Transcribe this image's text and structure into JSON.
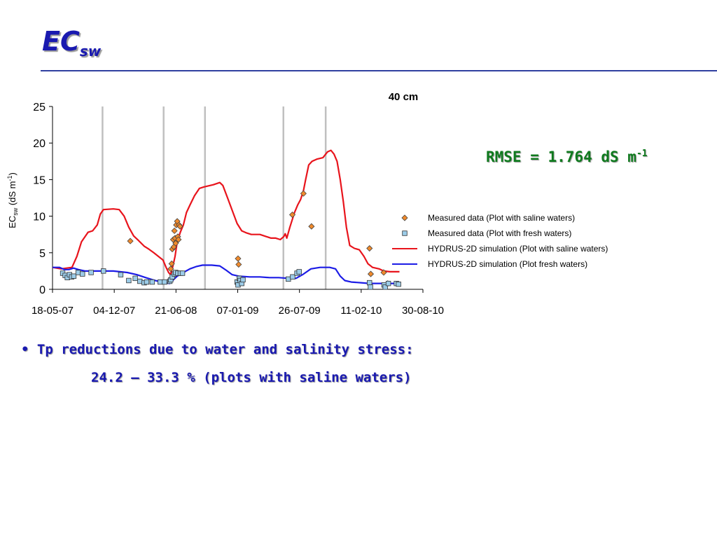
{
  "slide": {
    "title_main": "EC",
    "title_sub": "sw",
    "rmse_text": "RMSE = 1.764 dS m",
    "rmse_exp": "-1",
    "bullet_marker": "•",
    "bullet_line1": "Tp reductions due to water and salinity stress:",
    "bullet_line2": "24.2 – 33.3 % (plots with saline waters)"
  },
  "chart_data": {
    "type": "line",
    "title": "40 cm",
    "ylabel": "EC",
    "ylabel_sub": "sw",
    "ylabel_units": " (dS m",
    "ylabel_exp": "-1",
    "ylabel_close": ")",
    "ylim": [
      0,
      25
    ],
    "yticks": [
      "0",
      "5",
      "10",
      "15",
      "20",
      "25"
    ],
    "xlim": [
      "2007-05-18",
      "2010-08-30"
    ],
    "xticks": [
      "18-05-07",
      "04-12-07",
      "21-06-08",
      "07-01-09",
      "26-07-09",
      "11-02-10",
      "30-08-10"
    ],
    "vertical_lines": [
      "2007-10-27",
      "2008-05-12",
      "2008-09-23",
      "2009-06-04",
      "2009-10-19"
    ],
    "grid": false,
    "legend_position": "right",
    "colors": {
      "saline": "#e8141c",
      "fresh": "#1c1ce6",
      "measured_saline": "#f08a2c",
      "measured_fresh": "#9ccce8",
      "vline": "#c0c0c0"
    },
    "series": [
      {
        "name": "Measured data (Plot with saline waters)",
        "kind": "points",
        "marker": "diamond",
        "points": [
          [
            "2008-01-25",
            6.6
          ],
          [
            "2008-06-04",
            2.8
          ],
          [
            "2008-06-07",
            3.5
          ],
          [
            "2008-06-09",
            5.5
          ],
          [
            "2008-06-12",
            6.8
          ],
          [
            "2008-06-14",
            5.8
          ],
          [
            "2008-06-16",
            8.0
          ],
          [
            "2008-06-18",
            7.0
          ],
          [
            "2008-06-20",
            6.3
          ],
          [
            "2008-06-22",
            8.8
          ],
          [
            "2008-06-25",
            9.3
          ],
          [
            "2008-06-27",
            7.2
          ],
          [
            "2008-06-29",
            6.8
          ],
          [
            "2008-07-01",
            8.8
          ],
          [
            "2008-07-04",
            8.6
          ],
          [
            "2009-01-08",
            4.2
          ],
          [
            "2009-01-10",
            3.4
          ],
          [
            "2009-07-03",
            10.2
          ],
          [
            "2009-08-08",
            13.1
          ],
          [
            "2009-09-03",
            8.6
          ],
          [
            "2010-03-10",
            5.6
          ],
          [
            "2010-03-14",
            2.1
          ],
          [
            "2010-04-25",
            2.3
          ],
          [
            "2010-05-08",
            0.8
          ]
        ]
      },
      {
        "name": "Measured data (Plot with fresh waters)",
        "kind": "points",
        "marker": "square",
        "points": [
          [
            "2007-06-20",
            2.2
          ],
          [
            "2007-06-28",
            1.9
          ],
          [
            "2007-07-05",
            1.6
          ],
          [
            "2007-07-12",
            2.0
          ],
          [
            "2007-07-19",
            1.7
          ],
          [
            "2007-07-26",
            1.8
          ],
          [
            "2007-08-09",
            2.3
          ],
          [
            "2007-08-23",
            2.1
          ],
          [
            "2007-09-20",
            2.3
          ],
          [
            "2007-10-30",
            2.5
          ],
          [
            "2007-12-25",
            2.0
          ],
          [
            "2008-01-20",
            1.2
          ],
          [
            "2008-02-10",
            1.5
          ],
          [
            "2008-02-25",
            1.1
          ],
          [
            "2008-03-10",
            0.9
          ],
          [
            "2008-03-18",
            1.0
          ],
          [
            "2008-04-05",
            1.0
          ],
          [
            "2008-05-01",
            1.0
          ],
          [
            "2008-05-15",
            1.0
          ],
          [
            "2008-06-01",
            1.1
          ],
          [
            "2008-06-04",
            1.3
          ],
          [
            "2008-06-09",
            1.7
          ],
          [
            "2008-06-16",
            2.1
          ],
          [
            "2008-06-20",
            2.3
          ],
          [
            "2008-06-27",
            2.2
          ],
          [
            "2008-07-05",
            2.2
          ],
          [
            "2008-07-12",
            2.2
          ],
          [
            "2009-01-05",
            1.0
          ],
          [
            "2009-01-08",
            0.6
          ],
          [
            "2009-01-12",
            1.5
          ],
          [
            "2009-01-15",
            1.2
          ],
          [
            "2009-01-20",
            0.8
          ],
          [
            "2009-01-24",
            1.3
          ],
          [
            "2009-06-20",
            1.4
          ],
          [
            "2009-07-04",
            1.7
          ],
          [
            "2009-07-18",
            2.2
          ],
          [
            "2009-07-25",
            2.4
          ],
          [
            "2010-03-10",
            0.9
          ],
          [
            "2010-03-13",
            0.3
          ],
          [
            "2010-04-26",
            0.6
          ],
          [
            "2010-04-30",
            0.3
          ],
          [
            "2010-05-10",
            0.8
          ],
          [
            "2010-06-05",
            0.8
          ],
          [
            "2010-06-12",
            0.7
          ]
        ]
      },
      {
        "name": "HYDRUS-2D simulation (Plot with saline waters)",
        "kind": "line",
        "points": [
          [
            "2007-05-18",
            3.0
          ],
          [
            "2007-06-15",
            2.8
          ],
          [
            "2007-07-20",
            3.0
          ],
          [
            "2007-08-05",
            4.5
          ],
          [
            "2007-08-20",
            6.5
          ],
          [
            "2007-09-10",
            7.8
          ],
          [
            "2007-09-25",
            8.0
          ],
          [
            "2007-10-10",
            8.8
          ],
          [
            "2007-10-20",
            10.3
          ],
          [
            "2007-10-30",
            10.9
          ],
          [
            "2007-12-01",
            11.0
          ],
          [
            "2007-12-20",
            10.9
          ],
          [
            "2008-01-05",
            10.0
          ],
          [
            "2008-01-20",
            8.5
          ],
          [
            "2008-02-05",
            7.3
          ],
          [
            "2008-02-20",
            6.7
          ],
          [
            "2008-03-10",
            5.9
          ],
          [
            "2008-03-25",
            5.5
          ],
          [
            "2008-04-10",
            5.0
          ],
          [
            "2008-04-25",
            4.5
          ],
          [
            "2008-05-10",
            4.0
          ],
          [
            "2008-05-20",
            3.0
          ],
          [
            "2008-05-28",
            2.3
          ],
          [
            "2008-06-03",
            2.0
          ],
          [
            "2008-06-10",
            3.0
          ],
          [
            "2008-06-18",
            4.5
          ],
          [
            "2008-06-25",
            6.5
          ],
          [
            "2008-07-05",
            7.8
          ],
          [
            "2008-07-15",
            8.8
          ],
          [
            "2008-07-25",
            10.5
          ],
          [
            "2008-08-05",
            11.5
          ],
          [
            "2008-08-20",
            12.8
          ],
          [
            "2008-09-05",
            13.8
          ],
          [
            "2008-09-20",
            14.0
          ],
          [
            "2008-10-20",
            14.3
          ],
          [
            "2008-11-10",
            14.6
          ],
          [
            "2008-11-20",
            14.2
          ],
          [
            "2008-12-05",
            12.5
          ],
          [
            "2008-12-20",
            10.8
          ],
          [
            "2009-01-05",
            9.0
          ],
          [
            "2009-01-20",
            8.0
          ],
          [
            "2009-02-05",
            7.7
          ],
          [
            "2009-02-20",
            7.5
          ],
          [
            "2009-03-20",
            7.5
          ],
          [
            "2009-04-10",
            7.2
          ],
          [
            "2009-04-25",
            7.0
          ],
          [
            "2009-05-10",
            7.0
          ],
          [
            "2009-05-25",
            6.8
          ],
          [
            "2009-06-05",
            7.2
          ],
          [
            "2009-06-10",
            7.6
          ],
          [
            "2009-06-15",
            7.0
          ],
          [
            "2009-06-25",
            8.5
          ],
          [
            "2009-07-10",
            10.5
          ],
          [
            "2009-07-20",
            11.5
          ],
          [
            "2009-07-30",
            12.3
          ],
          [
            "2009-08-08",
            13.5
          ],
          [
            "2009-08-15",
            15.0
          ],
          [
            "2009-08-25",
            17.0
          ],
          [
            "2009-09-05",
            17.5
          ],
          [
            "2009-09-20",
            17.8
          ],
          [
            "2009-10-10",
            18.0
          ],
          [
            "2009-10-25",
            18.8
          ],
          [
            "2009-11-05",
            19.0
          ],
          [
            "2009-11-15",
            18.5
          ],
          [
            "2009-11-25",
            17.5
          ],
          [
            "2009-12-05",
            15.0
          ],
          [
            "2009-12-15",
            12.0
          ],
          [
            "2009-12-25",
            8.5
          ],
          [
            "2010-01-05",
            6.0
          ],
          [
            "2010-01-20",
            5.6
          ],
          [
            "2010-02-05",
            5.4
          ],
          [
            "2010-02-20",
            4.5
          ],
          [
            "2010-03-05",
            3.5
          ],
          [
            "2010-03-20",
            3.0
          ],
          [
            "2010-04-10",
            2.8
          ],
          [
            "2010-04-25",
            2.5
          ],
          [
            "2010-05-15",
            2.4
          ],
          [
            "2010-06-15",
            2.4
          ]
        ]
      },
      {
        "name": "HYDRUS-2D simulation (Plot fresh waters)",
        "kind": "line",
        "points": [
          [
            "2007-05-18",
            3.0
          ],
          [
            "2007-06-10",
            3.0
          ],
          [
            "2007-06-25",
            2.7
          ],
          [
            "2007-07-10",
            2.7
          ],
          [
            "2007-07-25",
            2.9
          ],
          [
            "2007-08-10",
            2.7
          ],
          [
            "2007-09-01",
            2.5
          ],
          [
            "2007-10-01",
            2.5
          ],
          [
            "2007-11-01",
            2.5
          ],
          [
            "2007-12-01",
            2.5
          ],
          [
            "2008-01-15",
            2.3
          ],
          [
            "2008-02-15",
            2.0
          ],
          [
            "2008-03-15",
            1.6
          ],
          [
            "2008-04-15",
            1.2
          ],
          [
            "2008-05-15",
            0.9
          ],
          [
            "2008-06-01",
            0.8
          ],
          [
            "2008-06-10",
            1.2
          ],
          [
            "2008-06-25",
            1.8
          ],
          [
            "2008-07-15",
            2.3
          ],
          [
            "2008-08-05",
            2.8
          ],
          [
            "2008-08-25",
            3.1
          ],
          [
            "2008-09-15",
            3.3
          ],
          [
            "2008-10-15",
            3.3
          ],
          [
            "2008-11-10",
            3.2
          ],
          [
            "2008-12-01",
            2.6
          ],
          [
            "2008-12-20",
            2.0
          ],
          [
            "2009-01-10",
            1.8
          ],
          [
            "2009-02-15",
            1.7
          ],
          [
            "2009-03-20",
            1.7
          ],
          [
            "2009-04-20",
            1.6
          ],
          [
            "2009-05-20",
            1.6
          ],
          [
            "2009-06-20",
            1.5
          ],
          [
            "2009-07-15",
            1.5
          ],
          [
            "2009-08-05",
            2.0
          ],
          [
            "2009-09-01",
            2.8
          ],
          [
            "2009-10-01",
            3.0
          ],
          [
            "2009-11-01",
            3.0
          ],
          [
            "2009-11-20",
            2.8
          ],
          [
            "2009-12-05",
            1.8
          ],
          [
            "2009-12-20",
            1.2
          ],
          [
            "2010-01-10",
            1.0
          ],
          [
            "2010-02-10",
            0.9
          ],
          [
            "2010-03-10",
            0.8
          ],
          [
            "2010-04-10",
            0.8
          ],
          [
            "2010-05-10",
            0.8
          ],
          [
            "2010-06-15",
            0.8
          ]
        ]
      }
    ]
  }
}
